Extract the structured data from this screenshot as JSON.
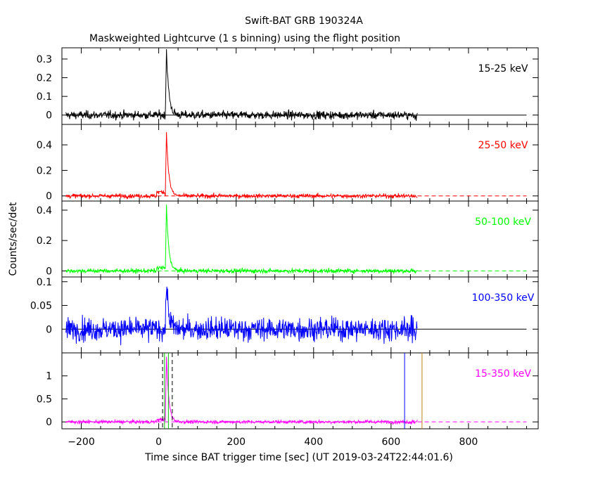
{
  "title": "Swift-BAT GRB 190324A",
  "subtitle": "Maskweighted Lightcurve (1 s binning) using the flight position",
  "xlabel": "Time since BAT trigger time [sec] (UT 2019-03-24T22:44:01.6)",
  "ylabel": "Counts/sec/det",
  "chart_data": [
    {
      "type": "line",
      "series": [
        {
          "name": "15-25 keV",
          "color": "#000000"
        }
      ],
      "xlim": [
        -250,
        980
      ],
      "ylim": [
        -0.05,
        0.36
      ],
      "yticks": [
        0,
        0.1,
        0.2,
        0.3
      ],
      "yticklabels": [
        "0",
        "0.1",
        "0.2",
        "0.3"
      ],
      "data_range": [
        -240,
        668
      ],
      "baseline": 0,
      "noise_sigma": 0.011,
      "peak_time": 20,
      "peak_value": 0.35,
      "decay_s": 6,
      "precursor": 0
    },
    {
      "type": "line",
      "series": [
        {
          "name": "25-50 keV",
          "color": "#ff0000"
        }
      ],
      "xlim": [
        -250,
        980
      ],
      "ylim": [
        -0.04,
        0.56
      ],
      "yticks": [
        0,
        0.2,
        0.4
      ],
      "yticklabels": [
        "0",
        "0.2",
        "0.4"
      ],
      "data_range": [
        -240,
        668
      ],
      "baseline": 0,
      "noise_sigma": 0.008,
      "peak_time": 20,
      "peak_value": 0.5,
      "decay_s": 6,
      "precursor": 0.03
    },
    {
      "type": "line",
      "series": [
        {
          "name": "50-100 keV",
          "color": "#00ff00"
        }
      ],
      "xlim": [
        -250,
        980
      ],
      "ylim": [
        -0.04,
        0.46
      ],
      "yticks": [
        0,
        0.2,
        0.4
      ],
      "yticklabels": [
        "0",
        "0.2",
        "0.4"
      ],
      "data_range": [
        -240,
        668
      ],
      "baseline": 0,
      "noise_sigma": 0.007,
      "peak_time": 20,
      "peak_value": 0.43,
      "decay_s": 6,
      "precursor": 0.02
    },
    {
      "type": "line",
      "series": [
        {
          "name": "100-350 keV",
          "color": "#0000ff"
        }
      ],
      "xlim": [
        -250,
        980
      ],
      "ylim": [
        -0.05,
        0.11
      ],
      "yticks": [
        0,
        0.05,
        0.1
      ],
      "yticklabels": [
        "0",
        "0.05",
        "0.1"
      ],
      "data_range": [
        -240,
        668
      ],
      "baseline": 0,
      "noise_sigma": 0.012,
      "peak_time": 20,
      "peak_value": 0.1,
      "decay_s": 6,
      "precursor": 0
    },
    {
      "type": "line",
      "series": [
        {
          "name": "15-350 keV",
          "color": "#ff00ff"
        }
      ],
      "xlim": [
        -250,
        980
      ],
      "ylim": [
        -0.15,
        1.5
      ],
      "yticks": [
        0,
        0.5,
        1
      ],
      "yticklabels": [
        "0",
        "0.5",
        "1"
      ],
      "data_range": [
        -240,
        668
      ],
      "baseline": 0,
      "noise_sigma": 0.018,
      "peak_time": 20,
      "peak_value": 1.42,
      "decay_s": 6,
      "precursor": 0.05,
      "vlines": [
        {
          "x": 10,
          "color": "#000000",
          "style": "dashed"
        },
        {
          "x": 35,
          "color": "#000000",
          "style": "dashed"
        },
        {
          "x": 15,
          "color": "#00c000",
          "style": "solid"
        },
        {
          "x": 25,
          "color": "#00c000",
          "style": "solid"
        },
        {
          "x": 635,
          "color": "#0000ff",
          "style": "solid"
        },
        {
          "x": 680,
          "color": "#c08020",
          "style": "solid"
        }
      ]
    }
  ],
  "xticks": [
    -200,
    0,
    200,
    400,
    600,
    800
  ],
  "xticklabels": [
    "−200",
    "0",
    "200",
    "400",
    "600",
    "800"
  ]
}
